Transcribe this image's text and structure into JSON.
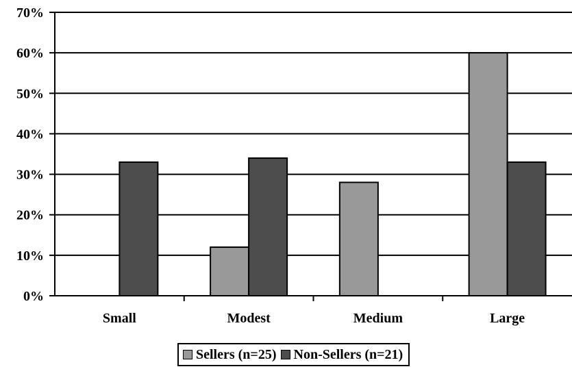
{
  "chart_data": {
    "type": "bar",
    "title": "",
    "xlabel": "",
    "ylabel": "",
    "categories": [
      "Small",
      "Modest",
      "Medium",
      "Large"
    ],
    "series": [
      {
        "name": "Sellers (n=25)",
        "values": [
          0,
          12,
          28,
          60
        ],
        "color": "#999999"
      },
      {
        "name": "Non-Sellers (n=21)",
        "values": [
          33,
          34,
          0,
          33
        ],
        "color": "#4d4d4d"
      }
    ],
    "ylim": [
      0,
      70
    ],
    "yticks": [
      "0%",
      "10%",
      "20%",
      "30%",
      "40%",
      "50%",
      "60%",
      "70%"
    ],
    "grid": true,
    "legend_position": "bottom"
  }
}
